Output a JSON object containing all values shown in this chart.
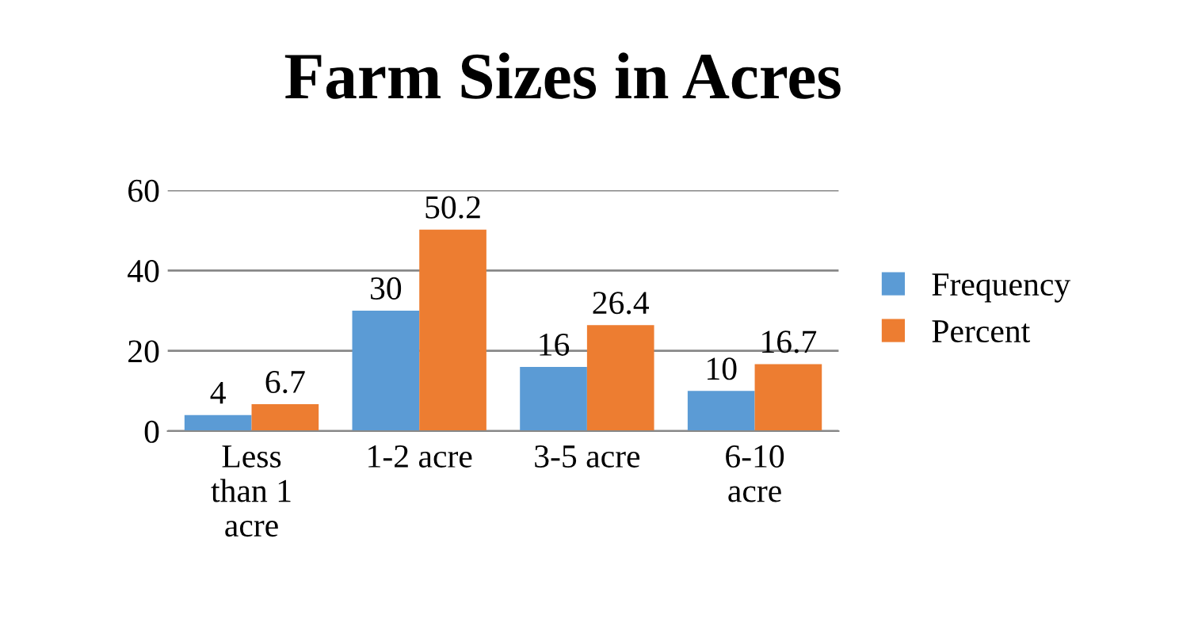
{
  "chart_data": {
    "type": "bar",
    "title": "Farm Sizes in Acres",
    "categories": [
      "Less\nthan 1\nacre",
      "1-2 acre",
      "3-5 acre",
      "6-10\nacre"
    ],
    "series": [
      {
        "name": "Frequency",
        "color": "#5b9bd5",
        "values": [
          4,
          30,
          16,
          10
        ]
      },
      {
        "name": "Percent",
        "color": "#ed7d31",
        "values": [
          6.7,
          50.2,
          26.4,
          16.7
        ]
      }
    ],
    "ylim": [
      0,
      60
    ],
    "yticks": [
      0,
      20,
      40,
      60
    ],
    "grid": "y",
    "legend": "right",
    "data_labels": true
  }
}
